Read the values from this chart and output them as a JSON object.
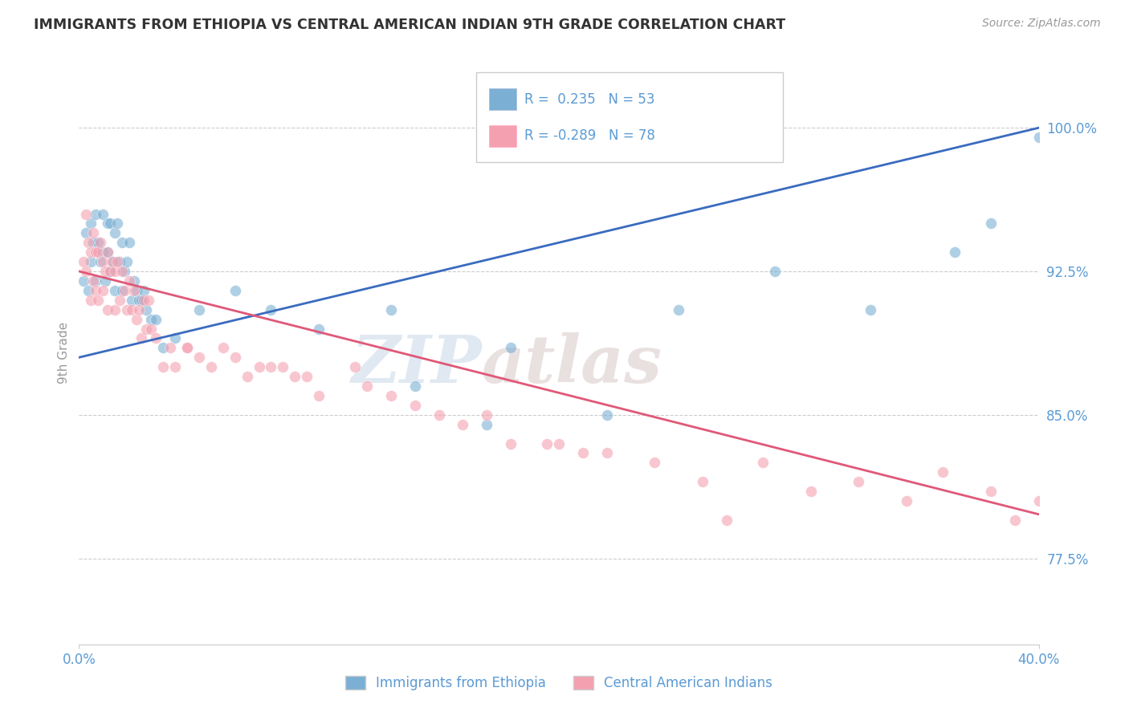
{
  "title": "IMMIGRANTS FROM ETHIOPIA VS CENTRAL AMERICAN INDIAN 9TH GRADE CORRELATION CHART",
  "source": "Source: ZipAtlas.com",
  "ylabel": "9th Grade",
  "xlim": [
    0.0,
    40.0
  ],
  "ylim": [
    73.0,
    103.5
  ],
  "yticks": [
    77.5,
    85.0,
    92.5,
    100.0
  ],
  "ytick_labels": [
    "77.5%",
    "85.0%",
    "92.5%",
    "100.0%"
  ],
  "xtick_labels": [
    "0.0%",
    "40.0%"
  ],
  "watermark_zip": "ZIP",
  "watermark_atlas": "atlas",
  "blue_color": "#7BAfd4",
  "pink_color": "#F4A0B0",
  "blue_line_color": "#3A6BBF",
  "pink_line_color": "#E05878",
  "axis_label_color": "#5B9BD5",
  "background_color": "#FFFFFF",
  "grid_color": "#CCCCCC",
  "blue_scatter_x": [
    0.2,
    0.3,
    0.4,
    0.5,
    0.5,
    0.6,
    0.7,
    0.7,
    0.8,
    0.9,
    1.0,
    1.0,
    1.1,
    1.2,
    1.2,
    1.3,
    1.3,
    1.4,
    1.5,
    1.5,
    1.6,
    1.7,
    1.8,
    1.8,
    1.9,
    2.0,
    2.1,
    2.2,
    2.3,
    2.4,
    2.5,
    2.6,
    2.7,
    2.8,
    3.0,
    3.2,
    3.5,
    4.0,
    5.0,
    6.5,
    8.0,
    10.0,
    13.0,
    18.0,
    25.0,
    29.0,
    33.0,
    36.5,
    38.0,
    40.0,
    14.0,
    17.0,
    22.0
  ],
  "blue_scatter_y": [
    92.0,
    94.5,
    91.5,
    95.0,
    93.0,
    94.0,
    95.5,
    92.0,
    94.0,
    93.0,
    95.5,
    93.5,
    92.0,
    95.0,
    93.5,
    95.0,
    92.5,
    93.0,
    94.5,
    91.5,
    95.0,
    93.0,
    94.0,
    91.5,
    92.5,
    93.0,
    94.0,
    91.0,
    92.0,
    91.5,
    91.0,
    91.0,
    91.5,
    90.5,
    90.0,
    90.0,
    88.5,
    89.0,
    90.5,
    91.5,
    90.5,
    89.5,
    90.5,
    88.5,
    90.5,
    92.5,
    90.5,
    93.5,
    95.0,
    99.5,
    86.5,
    84.5,
    85.0
  ],
  "pink_scatter_x": [
    0.2,
    0.3,
    0.3,
    0.4,
    0.5,
    0.5,
    0.6,
    0.6,
    0.7,
    0.7,
    0.8,
    0.8,
    0.9,
    1.0,
    1.0,
    1.1,
    1.2,
    1.2,
    1.3,
    1.4,
    1.5,
    1.5,
    1.6,
    1.7,
    1.8,
    1.9,
    2.0,
    2.1,
    2.2,
    2.3,
    2.4,
    2.5,
    2.6,
    2.7,
    2.8,
    3.0,
    3.2,
    3.5,
    4.0,
    4.5,
    5.5,
    6.0,
    7.0,
    8.0,
    9.0,
    10.0,
    11.5,
    13.0,
    15.0,
    18.0,
    22.0,
    26.0,
    28.5,
    30.5,
    32.5,
    34.5,
    36.0,
    38.0,
    39.0,
    40.0,
    14.0,
    17.0,
    9.5,
    12.0,
    5.0,
    3.8,
    2.9,
    4.5,
    16.0,
    20.0,
    24.0,
    7.5,
    6.5,
    8.5,
    19.5,
    21.0,
    27.0
  ],
  "pink_scatter_y": [
    93.0,
    95.5,
    92.5,
    94.0,
    93.5,
    91.0,
    94.5,
    92.0,
    93.5,
    91.5,
    93.5,
    91.0,
    94.0,
    93.0,
    91.5,
    92.5,
    93.5,
    90.5,
    92.5,
    93.0,
    92.5,
    90.5,
    93.0,
    91.0,
    92.5,
    91.5,
    90.5,
    92.0,
    90.5,
    91.5,
    90.0,
    90.5,
    89.0,
    91.0,
    89.5,
    89.5,
    89.0,
    87.5,
    87.5,
    88.5,
    87.5,
    88.5,
    87.0,
    87.5,
    87.0,
    86.0,
    87.5,
    86.0,
    85.0,
    83.5,
    83.0,
    81.5,
    82.5,
    81.0,
    81.5,
    80.5,
    82.0,
    81.0,
    79.5,
    80.5,
    85.5,
    85.0,
    87.0,
    86.5,
    88.0,
    88.5,
    91.0,
    88.5,
    84.5,
    83.5,
    82.5,
    87.5,
    88.0,
    87.5,
    83.5,
    83.0,
    79.5
  ],
  "blue_trend_x": [
    0.0,
    40.0
  ],
  "blue_trend_y": [
    88.0,
    100.0
  ],
  "pink_trend_x": [
    0.0,
    40.0
  ],
  "pink_trend_y": [
    92.5,
    79.8
  ]
}
